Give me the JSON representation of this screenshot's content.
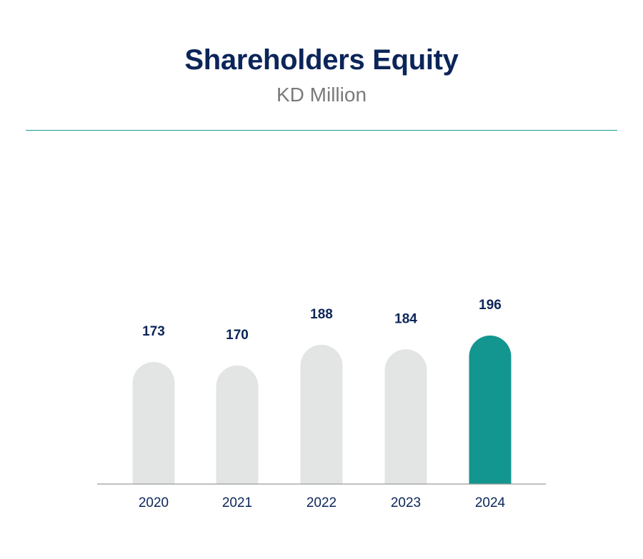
{
  "header": {
    "title": "Shareholders Equity",
    "subtitle": "KD Million"
  },
  "colors": {
    "title": "#0b2559",
    "subtitle": "#7a7a7a",
    "divider": "#1a9b91",
    "bar_default": "#e3e4e4",
    "bar_highlight": "#13968f",
    "label": "#0b2559",
    "baseline": "#9a9a9a"
  },
  "chart_data": {
    "type": "bar",
    "title": "Shareholders Equity",
    "subtitle": "KD Million",
    "categories": [
      "2020",
      "2021",
      "2022",
      "2023",
      "2024"
    ],
    "values": [
      173,
      170,
      188,
      184,
      196
    ],
    "highlight_index": 4,
    "xlabel": "",
    "ylabel": "",
    "grid": false,
    "legend": "none",
    "data_labels": true
  }
}
